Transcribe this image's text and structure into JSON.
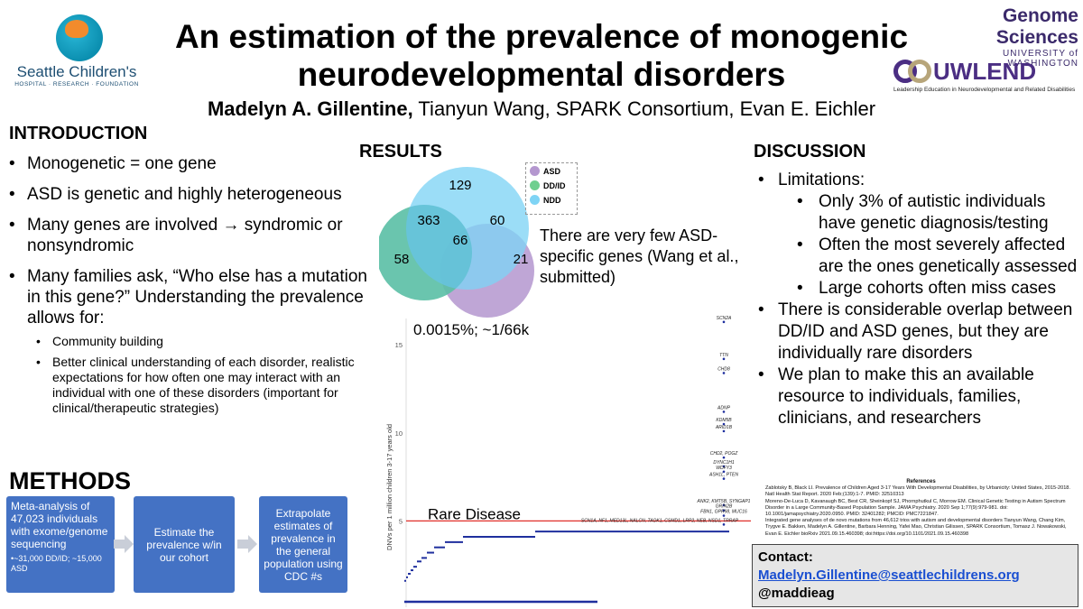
{
  "header": {
    "title_line1": "An estimation of the prevalence of monogenic",
    "title_line2": "neurodevelopmental disorders",
    "lead_author": "Madelyn A. Gillentine,",
    "other_authors": " Tianyun Wang, SPARK Consortium, Evan E. Eichler"
  },
  "logos": {
    "sch_name": "Seattle Children's",
    "sch_sub": "HOSPITAL · RESEARCH · FOUNDATION",
    "gs_line1": "Genome Sciences",
    "gs_line2": "UNIVERSITY of WASHINGTON",
    "lend_word": "UWLEND",
    "lend_tag": "Leadership Education in Neurodevelopmental and Related Disabilities"
  },
  "introduction": {
    "heading": "INTRODUCTION",
    "bullets": [
      "Monogenetic = one gene",
      "ASD is genetic and highly heterogeneous",
      "Many genes are involved → syndromic or nonsyndromic",
      "Many families ask, “Who else has a mutation in this gene?” Understanding the prevalence allows for:"
    ],
    "sub_bullets": [
      "Community building",
      "Better clinical understanding of each disorder, realistic expectations for how often one may interact with an individual with one of these disorders (important for clinical/therapeutic strategies)"
    ]
  },
  "methods": {
    "heading": "METHODS",
    "box1": "Meta-analysis of 47,023 individuals with exome/genome sequencing",
    "box1_small": "•~31,000 DD/ID; ~15,000 ASD",
    "box2": "Estimate the prevalence w/in our cohort",
    "box3": "Extrapolate estimates of prevalence in the general population using CDC #s"
  },
  "results": {
    "heading": "RESULTS",
    "venn": {
      "ndd_only": "129",
      "ddid_ndd": "363",
      "asd_ndd": "60",
      "all_three": "66",
      "ddid_only": "58",
      "asd_only": "21",
      "colors": {
        "asd": "#b497cf",
        "ddid": "#6fcf8f",
        "ndd": "#7fd4f5"
      }
    },
    "legend": [
      "ASD",
      "DD/ID",
      "NDD"
    ],
    "venn_note": "There are very few ASD-specific genes (Wang et al., submitted)",
    "plot_annotation": "0.0015%; ~1/66k",
    "rare_label": "Rare Disease",
    "y_axis_label": "DNVs per 1 million children 3-17 years old",
    "y_ticks": [
      "15",
      "10",
      "5"
    ],
    "gene_labels": [
      "SCN2A",
      "TTN",
      "CHD8",
      "ADNP",
      "KDM5B",
      "ARID1B",
      "CHD2, POGZ",
      "DYNC1H1",
      "WDFY3",
      "ASH1L, PTEN",
      "ANK2, KMT5B, SYNGAP1",
      "GRIN2B",
      "FBN1, GPR98, MUC16",
      "SCN1A, NF1, MED13L, NALCN, TAOK1, CSMD1, LRP2, NEB, NSD1, TRRAP"
    ]
  },
  "chart_data": {
    "type": "scatter",
    "ylabel": "DNVs per 1 million children 3-17 years old",
    "yticks": [
      5,
      10,
      15
    ],
    "threshold_line": 5,
    "threshold_label": "Rare Disease",
    "annotation": "0.0015%; ~1/66k",
    "points": [
      {
        "label": "SCN2A",
        "y": 16.3
      },
      {
        "label": "TTN",
        "y": 14.2
      },
      {
        "label": "CHD8",
        "y": 13.4
      },
      {
        "label": "ADNP",
        "y": 11.2
      },
      {
        "label": "KDM5B",
        "y": 10.5
      },
      {
        "label": "ARID1B",
        "y": 10.1
      },
      {
        "label": "CHD2, POGZ",
        "y": 8.6
      },
      {
        "label": "DYNC1H1",
        "y": 8.1
      },
      {
        "label": "WDFY3",
        "y": 7.8
      },
      {
        "label": "ASH1L, PTEN",
        "y": 7.4
      },
      {
        "label": "ANK2, KMT5B, SYNGAP1",
        "y": 5.9
      },
      {
        "label": "GRIN2B",
        "y": 5.6
      },
      {
        "label": "FBN1, GPR98, MUC16",
        "y": 5.3
      },
      {
        "label": "SCN1A, NF1, MED13L, NALCN, TAOK1, CSMD1, LRP2, NEB, NSD1, TRRAP",
        "y": 4.8
      }
    ],
    "tail_steps": [
      4.4,
      4.1,
      3.8,
      3.5,
      3.2,
      2.9,
      2.7,
      2.4,
      2.2,
      2.0,
      1.8,
      1.6
    ],
    "colors": {
      "points": "#1f2f9e",
      "threshold": "#e0302a"
    }
  },
  "discussion": {
    "heading": "DISCUSSION",
    "bullet1": "Limitations:",
    "sub": [
      "Only 3% of autistic individuals have genetic diagnosis/testing",
      "Often the most severely affected are the ones genetically assessed",
      "Large cohorts often miss cases"
    ],
    "bullet2": "There is considerable overlap between DD/ID and ASD genes, but they are individually rare disorders",
    "bullet3": "We plan to make this an available resource to individuals, families, clinicians, and researchers"
  },
  "references": {
    "heading": "References",
    "items": [
      "Zablotsky B, Black LI. Prevalence of Children Aged 3-17 Years With Developmental Disabilities, by Urbanicity: United States, 2015-2018. Natl Health Stat Report. 2020 Feb;(139):1-7. PMID: 32510313",
      "Moreno-De-Luca D, Kavanaugh BC, Best CR, Sheinkopf SJ, Phornphutkul C, Morrow EM. Clinical Genetic Testing in Autism Spectrum Disorder in a Large Community-Based Population Sample. JAMA Psychiatry. 2020 Sep 1;77(9):979-981. doi: 10.1001/jamapsychiatry.2020.0950. PMID: 32401282; PMCID: PMC7221847.",
      "Integrated gene analyses of de novo mutations from 46,612 trios with autism and developmental disorders Tianyun Wang, Chang Kim, Trygve E. Bakken, Madelyn A. Gillentine, Barbara Henning, Yafei Mao, Christian Gilissen, SPARK Consortium, Tomasz J. Nowakowski, Evan E. Eichler bioRxiv 2021.09.15.460398; doi:https://doi.org/10.1101/2021.09.15.460398"
    ]
  },
  "contact": {
    "heading": "Contact:",
    "email": "Madelyn.Gillentine@seattlechildrens.org",
    "handle": "@maddieag"
  }
}
